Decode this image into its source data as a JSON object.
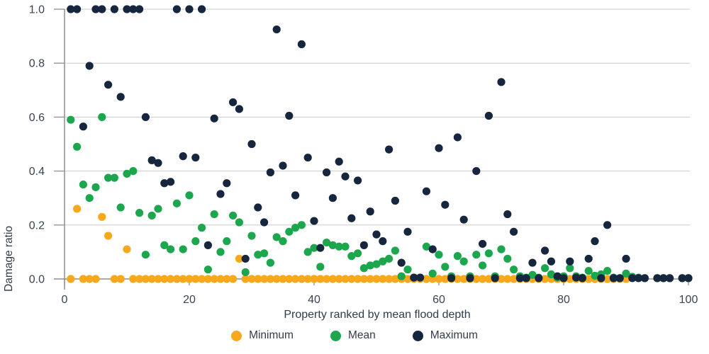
{
  "chart_data": {
    "type": "scatter",
    "xlabel": "Property ranked by mean flood depth",
    "ylabel": "Damage ratio",
    "xlim": [
      0,
      100
    ],
    "ylim": [
      0,
      1
    ],
    "x_ticks": [
      0,
      20,
      40,
      60,
      80,
      100
    ],
    "y_ticks": [
      "0.0",
      "0.2",
      "0.4",
      "0.6",
      "0.8",
      "1.0"
    ],
    "grid": "horizontal",
    "legend_position": "bottom",
    "x": [
      1,
      2,
      3,
      4,
      5,
      6,
      7,
      8,
      9,
      10,
      11,
      12,
      13,
      14,
      15,
      16,
      17,
      18,
      19,
      20,
      21,
      22,
      23,
      24,
      25,
      26,
      27,
      28,
      29,
      30,
      31,
      32,
      33,
      34,
      35,
      36,
      37,
      38,
      39,
      40,
      41,
      42,
      43,
      44,
      45,
      46,
      47,
      48,
      49,
      50,
      51,
      52,
      53,
      54,
      55,
      56,
      57,
      58,
      59,
      60,
      61,
      62,
      63,
      64,
      65,
      66,
      67,
      68,
      69,
      70,
      71,
      72,
      73,
      74,
      75,
      76,
      77,
      78,
      79,
      80,
      81,
      82,
      83,
      84,
      85,
      86,
      87,
      88,
      89,
      90,
      91,
      92,
      93,
      94,
      95,
      96,
      97,
      98,
      99,
      100
    ],
    "series": [
      {
        "name": "Minimum",
        "color": "#F8A81D",
        "values": [
          0,
          0.26,
          0,
          0,
          0,
          0.23,
          0.16,
          0,
          0,
          0.11,
          0,
          0,
          0,
          0,
          0,
          0,
          0,
          0,
          0,
          0,
          0,
          0,
          0,
          0,
          0,
          0,
          0,
          0.075,
          0,
          0,
          0,
          0,
          0,
          0,
          0,
          0,
          0,
          0,
          0,
          0,
          0,
          0,
          0,
          0,
          0,
          0,
          0,
          0,
          0,
          0,
          0,
          0,
          0,
          0,
          0,
          0,
          0,
          0,
          0,
          0,
          0,
          0,
          0,
          0,
          0,
          0,
          0,
          0,
          0,
          0,
          0,
          0,
          0,
          0,
          0,
          0,
          0,
          0,
          0,
          0,
          0,
          0,
          0,
          0,
          0,
          0,
          0,
          0,
          0,
          0,
          null,
          null,
          null,
          null,
          null,
          null,
          null,
          null,
          null,
          null
        ]
      },
      {
        "name": "Mean",
        "color": "#1CA64D",
        "values": [
          0.59,
          0.49,
          0.35,
          0.3,
          0.34,
          0.6,
          0.375,
          0.375,
          0.265,
          0.39,
          0.4,
          0.245,
          0.09,
          0.235,
          0.26,
          0.125,
          0.11,
          0.28,
          0.11,
          0.31,
          0.14,
          0.19,
          0.035,
          0.24,
          0.1,
          0.14,
          0.235,
          0.21,
          0.025,
          0.16,
          0.09,
          0.095,
          0.06,
          0.155,
          0.14,
          0.175,
          0.19,
          0.2,
          0.1,
          0.115,
          0.045,
          0.135,
          0.125,
          0.12,
          0.12,
          0.085,
          0.095,
          0.04,
          0.05,
          0.055,
          0.065,
          0.075,
          0.105,
          0.01,
          0.035,
          0.005,
          0.005,
          0.12,
          0.02,
          0.09,
          0.045,
          0.01,
          0.085,
          0.065,
          0.01,
          0.09,
          0.05,
          0.095,
          0.01,
          0.11,
          0.075,
          0.035,
          0.01,
          0.005,
          0.015,
          0.005,
          0.04,
          0.017,
          0.005,
          0.01,
          0.04,
          0.01,
          0.005,
          0.03,
          0.012,
          0.017,
          0.03,
          0.005,
          0.003,
          0.02,
          0.008,
          0.005,
          0.003,
          null,
          0.003,
          0.003,
          0.003,
          null,
          0.003,
          0.003
        ]
      },
      {
        "name": "Maximum",
        "color": "#17263F",
        "values": [
          1,
          1,
          0.565,
          0.79,
          1,
          1,
          0.72,
          1,
          0.675,
          1,
          1,
          1,
          0.6,
          0.44,
          0.43,
          0.355,
          0.36,
          1,
          0.455,
          1,
          0.45,
          1,
          0.125,
          0.595,
          0.315,
          0.355,
          0.655,
          0.63,
          0.075,
          0.5,
          0.265,
          0.21,
          0.395,
          0.925,
          0.42,
          0.605,
          0.31,
          0.87,
          0.45,
          0.215,
          0.115,
          0.395,
          0.3,
          0.435,
          0.38,
          0.225,
          0.365,
          0.125,
          0.25,
          0.165,
          0.14,
          0.48,
          0.29,
          0.06,
          0.175,
          0.005,
          0.005,
          0.325,
          0.11,
          0.485,
          0.275,
          0.003,
          0.525,
          0.22,
          0.003,
          0.4,
          0.13,
          0.605,
          0.003,
          0.73,
          0.24,
          0.175,
          0.003,
          0.003,
          0.06,
          0.003,
          0.105,
          0.065,
          0.01,
          0.003,
          0.065,
          0.005,
          0.003,
          0.075,
          0.14,
          0.003,
          0.2,
          0.003,
          0.003,
          0.075,
          0.003,
          0.003,
          0.003,
          null,
          0.003,
          0.003,
          0.003,
          null,
          0.003,
          0.003
        ]
      }
    ],
    "axis_colors": {
      "gridline": "#cccccc",
      "axis": "#8f8f8f",
      "text": "#3a434f"
    }
  }
}
